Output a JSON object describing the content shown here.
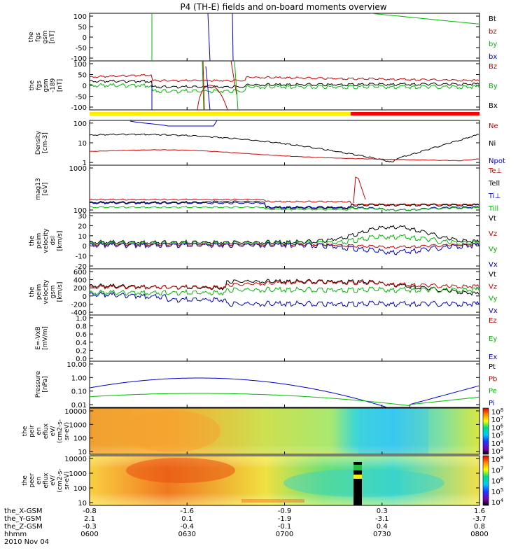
{
  "title": "P4 (TH-E) fields and on-board moments overview",
  "chart_data": [
    {
      "id": "fgs",
      "type": "line",
      "ylabel_lines": [
        "the",
        "fgs",
        "gsm",
        "[nT]"
      ],
      "ylim": [
        -100,
        100
      ],
      "yticks": [
        "100",
        "50",
        "0",
        "-50",
        "-100"
      ],
      "legend": [
        {
          "label": "Bt",
          "color": "#000000"
        },
        {
          "label": "bz",
          "color": "#cc0000"
        },
        {
          "label": "by",
          "color": "#00bb00"
        },
        {
          "label": "bx",
          "color": "#0000cc"
        }
      ]
    },
    {
      "id": "fgs_l",
      "type": "line",
      "ylabel_lines": [
        "the",
        "fgs",
        "gsm",
        "-189",
        "[nT]"
      ],
      "ylim": [
        -120,
        100
      ],
      "yticks": [
        "100",
        "50",
        "0",
        "-50",
        "-100"
      ],
      "legend": [
        {
          "label": "Bz",
          "color": "#cc0000"
        },
        {
          "label": "By",
          "color": "#00bb00"
        },
        {
          "label": "Bx",
          "color": "#000000"
        }
      ]
    },
    {
      "id": "density",
      "type": "line",
      "log": true,
      "ylabel_lines": [
        "Density",
        "[cm-3]"
      ],
      "ylim": [
        0.3,
        150
      ],
      "yticks": [
        "100",
        "10",
        "1"
      ],
      "legend": [
        {
          "label": "Ne",
          "color": "#cc0000"
        },
        {
          "label": "Ni",
          "color": "#000000"
        },
        {
          "label": "Npot",
          "color": "#0000cc"
        }
      ]
    },
    {
      "id": "temp",
      "type": "line",
      "log": true,
      "ylabel_lines": [
        "mag13",
        "[eV]"
      ],
      "ylim": [
        90,
        9000
      ],
      "yticks": [
        "1000",
        "100"
      ],
      "legend": [
        {
          "label": "Te⊥",
          "color": "#cc0000"
        },
        {
          "label": "Tell",
          "color": "#000000"
        },
        {
          "label": "Ti⊥",
          "color": "#0000cc"
        },
        {
          "label": "Till",
          "color": "#00bb00"
        }
      ]
    },
    {
      "id": "vel_dsl",
      "type": "line",
      "ylabel_lines": [
        "the",
        "peim",
        "velocity",
        "dsl",
        "[km/s]"
      ],
      "ylim": [
        -20,
        30
      ],
      "yticks": [
        "30",
        "20",
        "10",
        "0",
        "-10",
        "-20"
      ],
      "legend": [
        {
          "label": "Vt",
          "color": "#000000"
        },
        {
          "label": "Vz",
          "color": "#cc0000"
        },
        {
          "label": "Vy",
          "color": "#00bb00"
        },
        {
          "label": "Vx",
          "color": "#0000cc"
        }
      ]
    },
    {
      "id": "vel_gsm",
      "type": "line",
      "ylabel_lines": [
        "the",
        "peim",
        "velocity",
        "gsm",
        "[km/s]"
      ],
      "ylim": [
        -400,
        600
      ],
      "yticks": [
        "600",
        "400",
        "200",
        "0",
        "-200",
        "-400"
      ],
      "legend": [
        {
          "label": "Vt",
          "color": "#000000"
        },
        {
          "label": "Vz",
          "color": "#cc0000"
        },
        {
          "label": "Vy",
          "color": "#00bb00"
        },
        {
          "label": "Vx",
          "color": "#0000cc"
        }
      ]
    },
    {
      "id": "efield",
      "type": "line",
      "ylabel_lines": [
        "E=-VxB",
        "[mV/m]"
      ],
      "ylim": [
        0,
        1
      ],
      "yticks": [
        "1.0",
        "0.8",
        "0.6",
        "0.4",
        "0.2",
        "0.0"
      ],
      "legend": [
        {
          "label": "Ez",
          "color": "#cc0000"
        },
        {
          "label": "Ey",
          "color": "#00bb00"
        },
        {
          "label": "Ex",
          "color": "#0000cc"
        }
      ]
    },
    {
      "id": "pressure",
      "type": "line",
      "log": true,
      "ylabel_lines": [
        "Pressure",
        "[nPa]"
      ],
      "ylim": [
        0.006,
        30
      ],
      "yticks": [
        "10.00",
        "1.00",
        "0.10",
        "0.01"
      ],
      "legend": [
        {
          "label": "Pt",
          "color": "#000000"
        },
        {
          "label": "Pb",
          "color": "#cc0000"
        },
        {
          "label": "Pe",
          "color": "#00bb00"
        },
        {
          "label": "Pi",
          "color": "#0000cc"
        }
      ]
    },
    {
      "id": "ion_spec",
      "type": "heatmap",
      "ylabel_lines": [
        "the",
        "peir",
        "en",
        "eflux",
        "eV/",
        "(cm2-s-",
        "sr-eV)"
      ],
      "yticks": [
        "10000",
        "1000",
        "100",
        "10"
      ],
      "colorbar_ticks": [
        "10^8",
        "10^7",
        "10^6",
        "10^5",
        "10^4",
        "10^3"
      ]
    },
    {
      "id": "ele_spec",
      "type": "heatmap",
      "ylabel_lines": [
        "the",
        "peer",
        "en",
        "eflux",
        "eV/",
        "(cm2-s-",
        "sr-eV)"
      ],
      "yticks": [
        "10000",
        "1000",
        "100",
        "10"
      ],
      "colorbar_ticks": [
        "10^8",
        "10^7",
        "10^6",
        "10^5",
        "10^4"
      ]
    }
  ],
  "xaxis": {
    "row_labels": [
      "the_X-GSM",
      "the_Y-GSM",
      "the_Z-GSM",
      "hhmm",
      "2010 Nov 04"
    ],
    "ticks": [
      {
        "x": "-0.8",
        "y": "2.1",
        "z": "-0.3",
        "t": "0600"
      },
      {
        "x": "-1.6",
        "y": "0.1",
        "z": "-0.4",
        "t": "0630"
      },
      {
        "x": "-0.9",
        "y": "-1.9",
        "z": "-0.1",
        "t": "0700"
      },
      {
        "x": "0.3",
        "y": "-3.1",
        "z": "0.4",
        "t": "0730"
      },
      {
        "x": "1.6",
        "y": "-3.7",
        "z": "0.8",
        "t": "0800"
      }
    ]
  }
}
